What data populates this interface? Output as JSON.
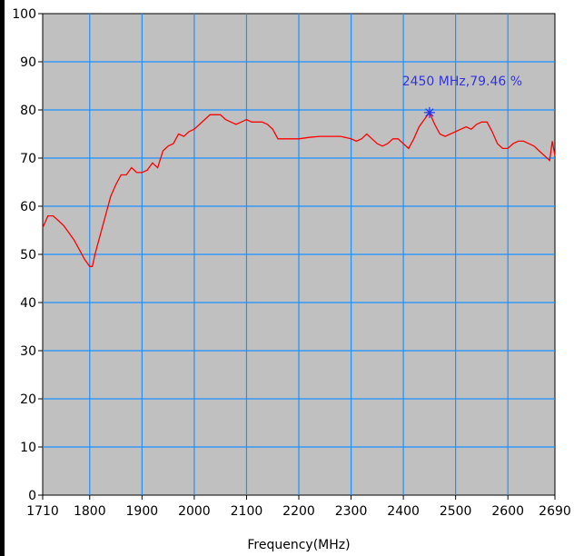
{
  "chart_data": {
    "type": "line",
    "title": "",
    "xlabel": "Frequency(MHz)",
    "ylabel": "",
    "xlim": [
      1710,
      2690
    ],
    "ylim": [
      0,
      100
    ],
    "grid": true,
    "x_ticks": [
      "1710",
      "1800",
      "1900",
      "2000",
      "2100",
      "2200",
      "2300",
      "2400",
      "2500",
      "2600",
      "2690"
    ],
    "y_ticks": [
      "0",
      "10",
      "20",
      "30",
      "40",
      "50",
      "60",
      "70",
      "80",
      "90",
      "100"
    ],
    "colors": {
      "plot_bg": "#c0c0c0",
      "grid": "#1e90ff",
      "line": "#ff0000",
      "marker": "#2233ee",
      "annotation": "#3333dd"
    },
    "series": [
      {
        "color": "#ff0000",
        "x": [
          1710,
          1720,
          1730,
          1740,
          1750,
          1760,
          1770,
          1780,
          1790,
          1800,
          1805,
          1810,
          1820,
          1830,
          1840,
          1850,
          1860,
          1870,
          1880,
          1890,
          1900,
          1910,
          1920,
          1930,
          1940,
          1950,
          1960,
          1970,
          1980,
          1990,
          2000,
          2010,
          2020,
          2030,
          2040,
          2050,
          2060,
          2070,
          2080,
          2090,
          2100,
          2110,
          2120,
          2130,
          2140,
          2150,
          2160,
          2170,
          2180,
          2190,
          2200,
          2220,
          2240,
          2260,
          2280,
          2300,
          2310,
          2320,
          2330,
          2340,
          2350,
          2360,
          2370,
          2380,
          2390,
          2400,
          2410,
          2420,
          2430,
          2440,
          2450,
          2460,
          2470,
          2480,
          2490,
          2500,
          2510,
          2520,
          2530,
          2540,
          2550,
          2560,
          2570,
          2580,
          2590,
          2600,
          2610,
          2620,
          2630,
          2640,
          2650,
          2660,
          2670,
          2680,
          2685,
          2690
        ],
        "values": [
          55.5,
          58,
          58,
          57,
          56,
          54.5,
          53,
          51,
          49,
          47.5,
          47.5,
          50,
          54,
          58,
          62,
          64.5,
          66.5,
          66.5,
          68,
          67,
          67,
          67.5,
          69,
          68,
          71.5,
          72.5,
          73,
          75,
          74.5,
          75.5,
          76,
          77,
          78,
          79,
          79,
          79,
          78,
          77.5,
          77,
          77.5,
          78,
          77.5,
          77.5,
          77.5,
          77,
          76,
          74,
          74,
          74,
          74,
          74,
          74.3,
          74.5,
          74.5,
          74.5,
          74,
          73.5,
          74,
          75,
          74,
          73,
          72.5,
          73,
          74,
          74,
          73,
          72,
          74,
          76.5,
          78,
          79.46,
          77,
          75,
          74.5,
          75,
          75.5,
          76,
          76.5,
          76,
          77,
          77.5,
          77.5,
          75.5,
          73,
          72,
          72,
          73,
          73.5,
          73.5,
          73,
          72.5,
          71.5,
          70.5,
          69.5,
          73.5,
          70.5
        ]
      }
    ],
    "marker": {
      "x": 2450,
      "y": 79.46,
      "label": "2450 MHz,79.46 %"
    }
  }
}
